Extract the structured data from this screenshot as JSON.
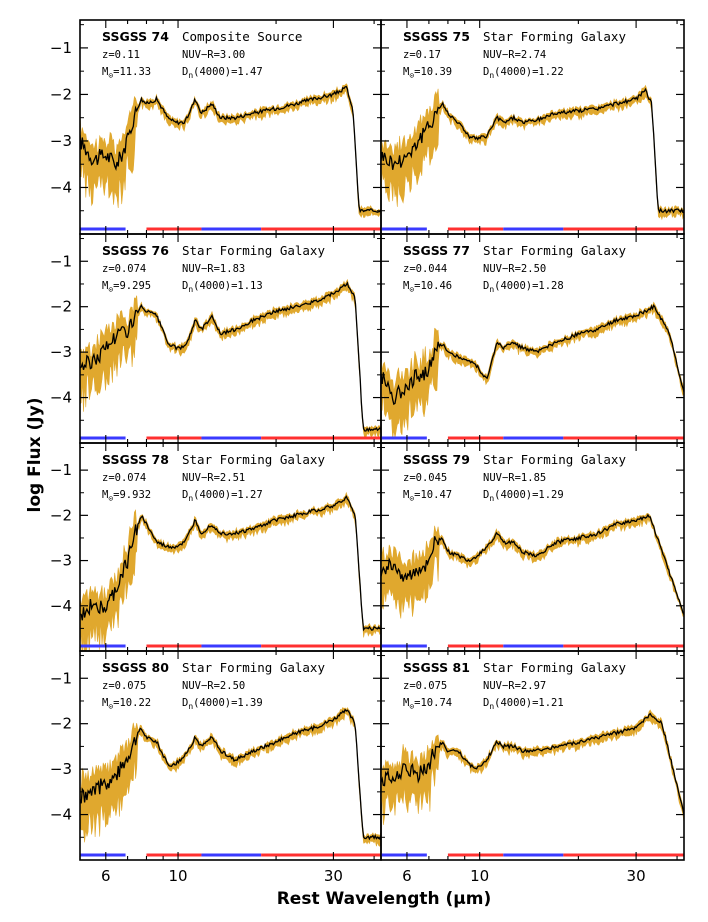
{
  "chart_data": {
    "type": "line",
    "xlabel": "Rest Wavelength (μm)",
    "ylabel": "log Flux (Jy)",
    "x_scale": "log",
    "xlim": [
      5.0,
      42.0
    ],
    "ylim": [
      -5.0,
      -0.4
    ],
    "x_ticks": [
      6,
      10,
      30
    ],
    "y_ticks": [
      -4,
      -3,
      -2,
      -1
    ],
    "colors": {
      "spectrum": "#000000",
      "error_band": "#e0a82e",
      "band_red": "#ff3030",
      "band_blue": "#3a3aff"
    },
    "bands": [
      {
        "color": "#3a3aff",
        "range": [
          5.0,
          6.9
        ]
      },
      {
        "color": "#ff3030",
        "range": [
          8.0,
          11.8
        ]
      },
      {
        "color": "#3a3aff",
        "range": [
          11.8,
          18.0
        ]
      },
      {
        "color": "#ff3030",
        "range": [
          18.0,
          42.0
        ]
      }
    ],
    "panels": [
      {
        "name": "SSGSS 74",
        "class": "Composite Source",
        "z": "z=0.11",
        "nuvr": "NUV−R=3.00",
        "mass": "11.33",
        "dn": "1.47",
        "x": [
          5.0,
          5.5,
          6.0,
          6.5,
          7.0,
          7.3,
          7.7,
          8.0,
          8.6,
          9.3,
          9.8,
          10.5,
          11.3,
          11.8,
          12.7,
          13.5,
          15,
          17,
          20,
          23,
          26,
          30,
          33,
          34.5,
          36
        ],
        "y": [
          -3.0,
          -3.4,
          -3.3,
          -3.5,
          -3.0,
          -2.5,
          -2.1,
          -2.2,
          -2.1,
          -2.5,
          -2.6,
          -2.6,
          -2.1,
          -2.4,
          -2.2,
          -2.5,
          -2.5,
          -2.4,
          -2.3,
          -2.2,
          -2.1,
          -2.0,
          -1.85,
          -2.4,
          -4.5
        ]
      },
      {
        "name": "SSGSS 75",
        "class": "Star Forming Galaxy",
        "z": "z=0.17",
        "nuvr": "NUV−R=2.74",
        "mass": "10.39",
        "dn": "1.22",
        "x": [
          5.0,
          5.5,
          6.0,
          6.5,
          7.0,
          7.3,
          7.7,
          8.0,
          8.6,
          9.3,
          9.8,
          10.5,
          11.3,
          11.8,
          12.7,
          13.5,
          15,
          17,
          20,
          23,
          26,
          30,
          32,
          33.5,
          35
        ],
        "y": [
          -3.3,
          -3.5,
          -3.3,
          -3.0,
          -2.7,
          -2.4,
          -2.2,
          -2.4,
          -2.6,
          -2.9,
          -2.95,
          -2.9,
          -2.5,
          -2.6,
          -2.5,
          -2.6,
          -2.55,
          -2.4,
          -2.35,
          -2.3,
          -2.2,
          -2.1,
          -1.9,
          -2.2,
          -4.5
        ]
      },
      {
        "name": "SSGSS 76",
        "class": "Star Forming Galaxy",
        "z": "z=0.074",
        "nuvr": "NUV−R=1.83",
        "mass": "9.295",
        "dn": "1.13",
        "x": [
          5.0,
          5.5,
          6.0,
          6.5,
          7.0,
          7.3,
          7.7,
          8.0,
          8.6,
          9.3,
          9.8,
          10.5,
          11.3,
          11.8,
          12.7,
          13.5,
          15,
          17,
          20,
          23,
          26,
          30,
          33,
          35,
          37
        ],
        "y": [
          -3.3,
          -3.2,
          -2.9,
          -2.6,
          -2.5,
          -2.3,
          -2.0,
          -2.1,
          -2.2,
          -2.8,
          -2.9,
          -2.9,
          -2.3,
          -2.5,
          -2.2,
          -2.6,
          -2.5,
          -2.3,
          -2.1,
          -2.0,
          -1.9,
          -1.7,
          -1.5,
          -1.8,
          -4.7
        ]
      },
      {
        "name": "SSGSS 77",
        "class": "Star Forming Galaxy",
        "z": "z=0.044",
        "nuvr": "NUV−R=2.50",
        "mass": "10.46",
        "dn": "1.28",
        "x": [
          5.0,
          5.5,
          6.0,
          6.5,
          7.0,
          7.3,
          7.7,
          8.0,
          8.6,
          9.3,
          9.8,
          10.5,
          11.3,
          11.8,
          12.7,
          13.5,
          15,
          17,
          20,
          23,
          26,
          30,
          34,
          38,
          42
        ],
        "y": [
          -3.5,
          -4.0,
          -3.7,
          -3.5,
          -3.4,
          -3.0,
          -2.8,
          -3.0,
          -3.1,
          -3.2,
          -3.3,
          -3.6,
          -2.8,
          -2.9,
          -2.8,
          -2.9,
          -3.0,
          -2.8,
          -2.6,
          -2.5,
          -2.3,
          -2.2,
          -2.0,
          -2.6,
          -3.9
        ]
      },
      {
        "name": "SSGSS 78",
        "class": "Star Forming Galaxy",
        "z": "z=0.074",
        "nuvr": "NUV−R=2.51",
        "mass": "9.932",
        "dn": "1.27",
        "x": [
          5.0,
          5.5,
          6.0,
          6.5,
          7.0,
          7.3,
          7.7,
          8.0,
          8.6,
          9.3,
          9.8,
          10.5,
          11.3,
          11.8,
          12.7,
          13.5,
          15,
          17,
          20,
          23,
          26,
          30,
          33,
          35,
          37
        ],
        "y": [
          -4.3,
          -3.9,
          -4.1,
          -3.6,
          -3.0,
          -2.5,
          -2.0,
          -2.2,
          -2.6,
          -2.7,
          -2.7,
          -2.6,
          -2.1,
          -2.4,
          -2.2,
          -2.4,
          -2.4,
          -2.3,
          -2.1,
          -2.0,
          -1.9,
          -1.8,
          -1.6,
          -2.0,
          -4.5
        ]
      },
      {
        "name": "SSGSS 79",
        "class": "Star Forming Galaxy",
        "z": "z=0.045",
        "nuvr": "NUV−R=1.85",
        "mass": "10.47",
        "dn": "1.29",
        "x": [
          5.0,
          5.5,
          6.0,
          6.5,
          7.0,
          7.3,
          7.7,
          8.0,
          8.6,
          9.3,
          9.8,
          10.5,
          11.3,
          11.8,
          12.7,
          13.5,
          15,
          17,
          20,
          23,
          26,
          30,
          33,
          36,
          42
        ],
        "y": [
          -3.2,
          -3.1,
          -3.4,
          -3.2,
          -3.0,
          -2.6,
          -2.5,
          -2.8,
          -2.9,
          -3.0,
          -2.9,
          -2.7,
          -2.4,
          -2.6,
          -2.6,
          -2.8,
          -2.9,
          -2.6,
          -2.5,
          -2.4,
          -2.2,
          -2.1,
          -2.0,
          -2.8,
          -4.2
        ]
      },
      {
        "name": "SSGSS 80",
        "class": "Star Forming Galaxy",
        "z": "z=0.075",
        "nuvr": "NUV−R=2.50",
        "mass": "10.22",
        "dn": "1.39",
        "x": [
          5.0,
          5.5,
          6.0,
          6.5,
          7.0,
          7.3,
          7.7,
          8.0,
          8.6,
          9.3,
          9.8,
          10.5,
          11.3,
          11.8,
          12.7,
          13.5,
          15,
          17,
          20,
          23,
          26,
          30,
          33,
          35,
          37
        ],
        "y": [
          -3.6,
          -3.5,
          -3.3,
          -3.1,
          -2.7,
          -2.4,
          -2.1,
          -2.3,
          -2.4,
          -2.9,
          -2.9,
          -2.7,
          -2.3,
          -2.5,
          -2.3,
          -2.6,
          -2.8,
          -2.6,
          -2.4,
          -2.2,
          -2.1,
          -1.9,
          -1.7,
          -2.0,
          -4.5
        ]
      },
      {
        "name": "SSGSS 81",
        "class": "Star Forming Galaxy",
        "z": "z=0.075",
        "nuvr": "NUV−R=2.97",
        "mass": "10.74",
        "dn": "1.21",
        "x": [
          5.0,
          5.5,
          6.0,
          6.5,
          7.0,
          7.3,
          7.7,
          8.0,
          8.6,
          9.3,
          9.8,
          10.5,
          11.3,
          11.8,
          12.7,
          13.5,
          15,
          17,
          20,
          23,
          26,
          30,
          33,
          36,
          42
        ],
        "y": [
          -3.3,
          -3.1,
          -3.0,
          -3.1,
          -2.9,
          -2.6,
          -2.4,
          -2.6,
          -2.6,
          -2.9,
          -3.0,
          -2.8,
          -2.4,
          -2.5,
          -2.5,
          -2.6,
          -2.6,
          -2.5,
          -2.4,
          -2.3,
          -2.2,
          -2.1,
          -1.8,
          -2.0,
          -4.0
        ]
      }
    ]
  }
}
